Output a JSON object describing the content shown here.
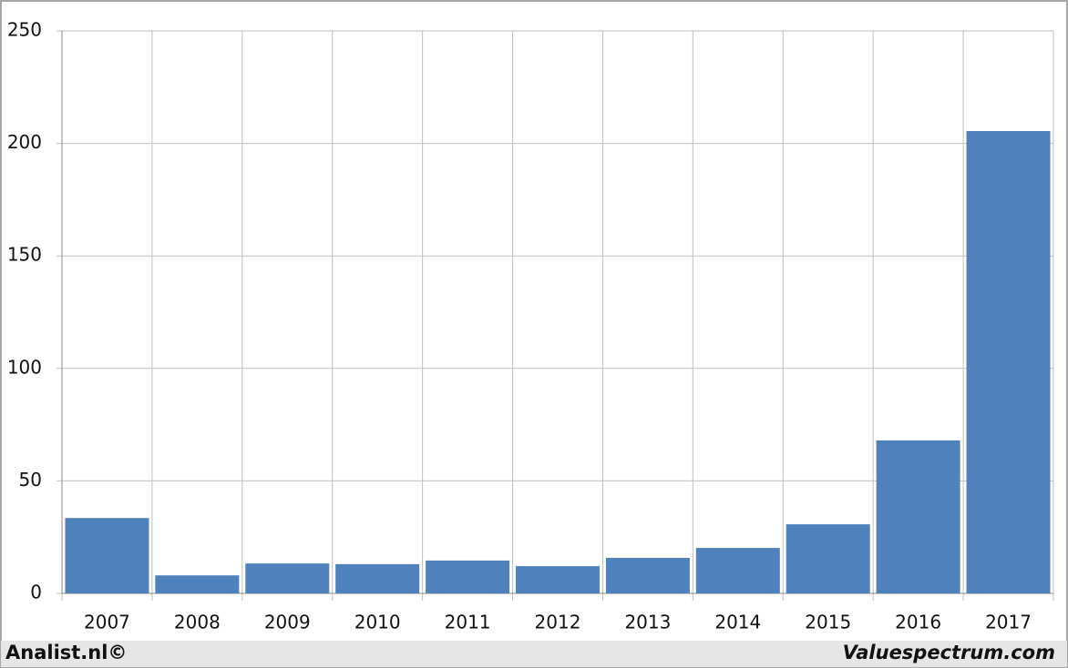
{
  "chart_data": {
    "type": "bar",
    "categories": [
      "2007",
      "2008",
      "2009",
      "2010",
      "2011",
      "2012",
      "2013",
      "2014",
      "2015",
      "2016",
      "2017"
    ],
    "values": [
      33.5,
      8,
      13.3,
      13,
      14.6,
      12.1,
      15.8,
      20.2,
      30.7,
      68,
      205.5
    ],
    "color": "#4f81bd",
    "ylim": [
      0,
      250
    ],
    "yticks": [
      0,
      50,
      100,
      150,
      200,
      250
    ],
    "grid": true,
    "footer_left": "Analist.nl©",
    "footer_right": "Valuespectrum.com"
  }
}
